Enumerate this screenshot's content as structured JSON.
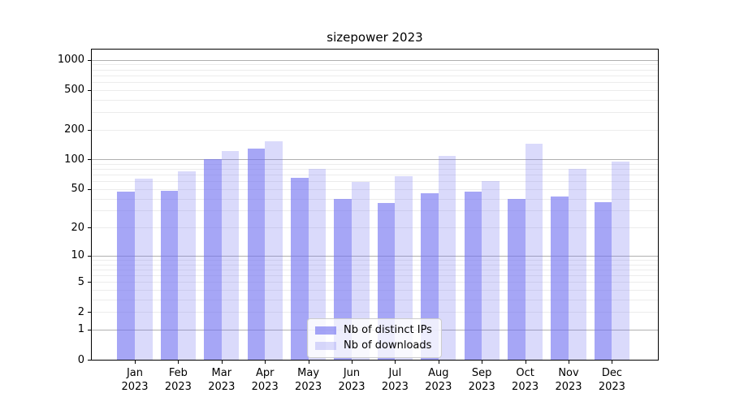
{
  "figure": {
    "background": "#ffffff",
    "text_color": "#000000",
    "axis_color": "#000000"
  },
  "chart_data": {
    "type": "bar",
    "title": "sizepower 2023",
    "categories": [
      "Jan",
      "Feb",
      "Mar",
      "Apr",
      "May",
      "Jun",
      "Jul",
      "Aug",
      "Sep",
      "Oct",
      "Nov",
      "Dec"
    ],
    "year_label": "2023",
    "series": [
      {
        "name": "Nb of distinct IPs",
        "color": "rgba(112,112,240,0.62)",
        "values": [
          47,
          48,
          100,
          129,
          65,
          40,
          36,
          45,
          47,
          40,
          42,
          37
        ]
      },
      {
        "name": "Nb of downloads",
        "color": "rgba(112,112,240,0.26)",
        "values": [
          64,
          76,
          121,
          153,
          80,
          59,
          67,
          108,
          60,
          144,
          80,
          96
        ]
      }
    ],
    "xlabel": "",
    "ylabel": "",
    "yscale": "log1p",
    "ylim": [
      0,
      1270
    ],
    "yticks": [
      1000,
      500,
      200,
      100,
      50,
      20,
      10,
      5,
      2,
      1,
      0
    ],
    "grid": {
      "on": true,
      "major_values": [
        1,
        10,
        100,
        1000
      ],
      "minor_base_values": [
        2,
        3,
        4,
        5,
        6,
        7,
        8,
        9
      ],
      "major_color": "#b0b0b0",
      "minor_color": "#ececec"
    },
    "legend": {
      "position": "lower center",
      "background": "rgba(255,255,255,0.8)",
      "border_color": "#cccccc"
    }
  }
}
